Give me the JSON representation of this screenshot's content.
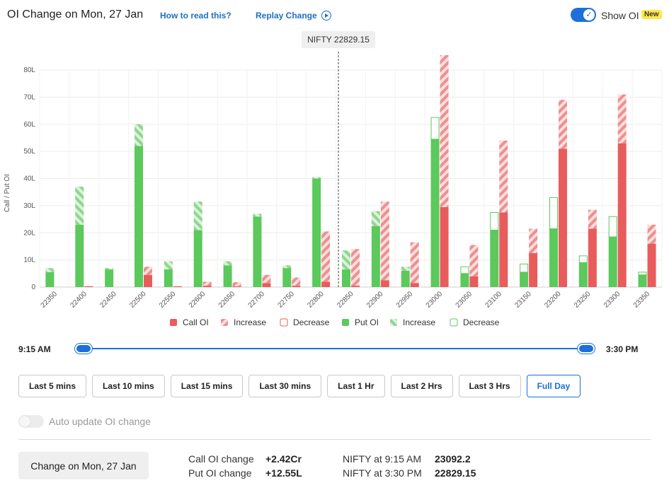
{
  "header": {
    "title": "OI Change on Mon, 27 Jan",
    "how_to_read": "How to read this?",
    "replay": "Replay Change",
    "show_oi": "Show OI",
    "new_badge": "New"
  },
  "chart_data": {
    "type": "bar",
    "ylabel": "Call / Put OI",
    "ylim": [
      0,
      80
    ],
    "yticks": [
      "0",
      "10L",
      "20L",
      "30L",
      "40L",
      "50L",
      "60L",
      "70L",
      "80L"
    ],
    "spot_marker": "NIFTY 22829.15",
    "spot_value": 22829.15,
    "categories": [
      "22350",
      "22400",
      "22450",
      "22500",
      "22550",
      "22600",
      "22650",
      "22700",
      "22750",
      "22800",
      "22850",
      "22900",
      "22950",
      "23000",
      "23050",
      "23100",
      "23150",
      "23200",
      "23250",
      "23300",
      "23350"
    ],
    "legend": [
      "Call OI",
      "Increase",
      "Decrease",
      "Put OI",
      "Increase",
      "Decrease"
    ],
    "series": [
      {
        "name": "Put OI",
        "values": [
          5.5,
          23,
          6.5,
          52,
          6.5,
          21,
          8,
          26,
          7,
          40,
          6.5,
          22.5,
          6,
          54.5,
          5,
          21,
          5.5,
          21.5,
          9,
          18.5,
          4.5
        ]
      },
      {
        "name": "Put OI Increase",
        "values": [
          1.5,
          14,
          0.5,
          8,
          3,
          10.5,
          1.5,
          1,
          1,
          0.5,
          7,
          5.5,
          1.5,
          0,
          0,
          0,
          0,
          0,
          0,
          0,
          0
        ]
      },
      {
        "name": "Put OI Decrease",
        "values": [
          0,
          0,
          0,
          0,
          0,
          0,
          0,
          0,
          0,
          0,
          0,
          0,
          0,
          8,
          2.5,
          6.5,
          3,
          11.5,
          2.5,
          7.5,
          1
        ]
      },
      {
        "name": "Call OI",
        "values": [
          0,
          0.3,
          0,
          4.5,
          0.3,
          0.5,
          0.3,
          1.5,
          0.5,
          2,
          0.5,
          2.5,
          1.5,
          29.5,
          4,
          27.5,
          12.5,
          51,
          21.5,
          53,
          16
        ]
      },
      {
        "name": "Call OI Increase",
        "values": [
          0,
          0,
          0,
          3,
          0,
          1.5,
          1.5,
          3,
          3,
          18.5,
          13.5,
          29,
          15,
          56,
          11.5,
          26.5,
          9,
          18,
          7,
          18,
          7
        ]
      },
      {
        "name": "Call OI Decrease",
        "values": [
          0,
          0,
          0,
          0,
          0,
          0,
          0,
          0,
          0,
          0,
          0,
          0,
          0,
          0,
          0,
          0,
          0,
          0,
          0,
          0,
          0
        ]
      }
    ],
    "colors": {
      "call": "#e85c5c",
      "call_increase": "#f3a5a5",
      "put": "#5bc95b",
      "put_increase": "#a6dfa6",
      "put_decrease_border": "#5bc95b",
      "call_decrease_border": "#e85c5c"
    }
  },
  "slider": {
    "start": "9:15 AM",
    "end": "3:30 PM",
    "start_fraction": 0,
    "end_fraction": 1
  },
  "buttons": [
    "Last 5 mins",
    "Last 10 mins",
    "Last 15 mins",
    "Last 30 mins",
    "Last 1 Hr",
    "Last 2 Hrs",
    "Last 3 Hrs",
    "Full Day"
  ],
  "active_button": "Full Day",
  "auto_update": "Auto update OI change",
  "footer": {
    "change_btn": "Change on Mon, 27 Jan",
    "call_oi_label": "Call OI change",
    "call_oi_value": "+2.42Cr",
    "put_oi_label": "Put OI change",
    "put_oi_value": "+12.55L",
    "nifty_open_label": "NIFTY at 9:15 AM",
    "nifty_open_value": "23092.2",
    "nifty_close_label": "NIFTY at 3:30 PM",
    "nifty_close_value": "22829.15"
  }
}
